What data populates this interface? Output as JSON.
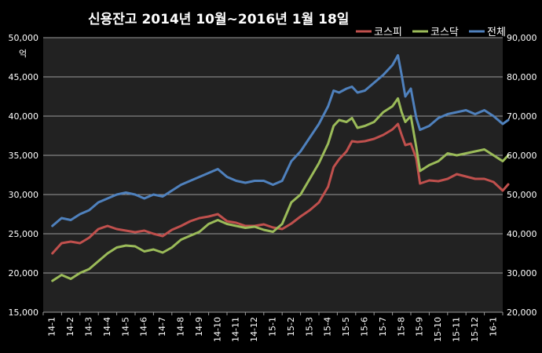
{
  "chart_data": {
    "type": "line",
    "title": "신용잔고 2014년 10월~2016년 1월 18일",
    "y_left_unit": "억",
    "y_left_ticks": [
      "50,000",
      "45,000",
      "40,000",
      "35,000",
      "30,000",
      "25,000",
      "20,000",
      "15,000"
    ],
    "y_right_ticks": [
      "90,000",
      "80,000",
      "70,000",
      "60,000",
      "50,000",
      "40,000",
      "30,000",
      "20,000"
    ],
    "ylim_left": [
      15000,
      50000
    ],
    "ylim_right": [
      20000,
      90000
    ],
    "x_ticks": [
      "14-1",
      "14-2",
      "14-3",
      "14-4",
      "14-5",
      "14-6",
      "14-7",
      "14-8",
      "14-9",
      "14-10",
      "14-11",
      "14-12",
      "15-1",
      "15-2",
      "15-3",
      "15-4",
      "15-5",
      "15-6",
      "15-7",
      "15-8",
      "15-9",
      "15-10",
      "15-11",
      "15-12",
      "16-1"
    ],
    "grid": "horizontal",
    "legend_position": "top-right",
    "series": [
      {
        "name": "코스피",
        "color": "#c0504d",
        "axis": "left",
        "x": [
          0,
          0.5,
          1,
          1.5,
          2,
          2.5,
          3,
          3.5,
          4,
          4.5,
          5,
          5.5,
          6,
          6.5,
          7,
          7.5,
          8,
          8.5,
          9,
          9.5,
          10,
          10.5,
          11,
          11.5,
          12,
          12.5,
          13,
          13.5,
          14,
          14.5,
          15,
          15.3,
          15.6,
          16,
          16.3,
          16.6,
          17,
          17.5,
          18,
          18.5,
          18.8,
          19,
          19.2,
          19.5,
          19.8,
          20,
          20.5,
          21,
          21.5,
          22,
          22.5,
          23,
          23.5,
          24,
          24.5,
          24.8
        ],
        "values": [
          22500,
          23800,
          24000,
          23800,
          24500,
          25600,
          26000,
          25600,
          25400,
          25200,
          25400,
          25000,
          24700,
          25500,
          26000,
          26600,
          27000,
          27200,
          27500,
          26600,
          26400,
          26000,
          26000,
          26200,
          25800,
          25600,
          26300,
          27200,
          28000,
          29000,
          31000,
          33500,
          34500,
          35500,
          36800,
          36700,
          36800,
          37100,
          37600,
          38300,
          39000,
          37600,
          36300,
          36500,
          34600,
          31400,
          31800,
          31700,
          32000,
          32600,
          32300,
          32000,
          32000,
          31600,
          30500,
          31300
        ]
      },
      {
        "name": "코스닥",
        "color": "#9bbb59",
        "axis": "right",
        "x": [
          0,
          0.5,
          1,
          1.5,
          2,
          2.5,
          3,
          3.5,
          4,
          4.5,
          5,
          5.5,
          6,
          6.5,
          7,
          7.5,
          8,
          8.5,
          9,
          9.5,
          10,
          10.5,
          11,
          11.5,
          12,
          12.5,
          13,
          13.5,
          14,
          14.5,
          15,
          15.3,
          15.6,
          16,
          16.3,
          16.6,
          17,
          17.5,
          18,
          18.5,
          18.8,
          19,
          19.2,
          19.5,
          19.8,
          20,
          20.5,
          21,
          21.5,
          22,
          22.5,
          23,
          23.5,
          24,
          24.5,
          24.8
        ],
        "values": [
          28000,
          29500,
          28500,
          30000,
          31000,
          33000,
          35000,
          36500,
          37000,
          36800,
          35500,
          36000,
          35200,
          36500,
          38500,
          39500,
          40500,
          42500,
          43500,
          42500,
          42000,
          41500,
          41800,
          41000,
          40500,
          42500,
          48000,
          50000,
          54000,
          58000,
          63000,
          67500,
          69000,
          68500,
          69500,
          67000,
          67500,
          68500,
          71000,
          72500,
          74500,
          71000,
          68500,
          70000,
          62000,
          56000,
          57500,
          58500,
          60500,
          60000,
          60500,
          61000,
          61500,
          60000,
          58500,
          60000
        ]
      },
      {
        "name": "전체",
        "color": "#4f81bd",
        "axis": "right",
        "x": [
          0,
          0.5,
          1,
          1.5,
          2,
          2.5,
          3,
          3.5,
          4,
          4.5,
          5,
          5.5,
          6,
          6.5,
          7,
          7.5,
          8,
          8.5,
          9,
          9.5,
          10,
          10.5,
          11,
          11.5,
          12,
          12.5,
          13,
          13.5,
          14,
          14.5,
          15,
          15.3,
          15.6,
          16,
          16.3,
          16.6,
          17,
          17.5,
          18,
          18.5,
          18.8,
          19,
          19.2,
          19.5,
          19.8,
          20,
          20.5,
          21,
          21.5,
          22,
          22.5,
          23,
          23.5,
          24,
          24.5,
          24.8
        ],
        "values": [
          42000,
          44000,
          43500,
          45000,
          46000,
          48000,
          49000,
          50000,
          50500,
          50000,
          49000,
          50000,
          49500,
          51000,
          52500,
          53500,
          54500,
          55500,
          56500,
          54500,
          53500,
          53000,
          53500,
          53500,
          52500,
          53500,
          58500,
          61000,
          64500,
          68000,
          72500,
          76500,
          76000,
          77000,
          77500,
          76000,
          76500,
          78500,
          80500,
          83000,
          85500,
          80500,
          75000,
          77000,
          69500,
          66500,
          67500,
          69500,
          70500,
          71000,
          71500,
          70500,
          71500,
          70000,
          68000,
          69000
        ]
      }
    ]
  }
}
